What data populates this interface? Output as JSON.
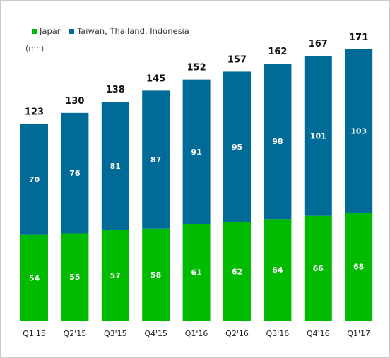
{
  "chart_data": {
    "type": "bar",
    "stacked": true,
    "categories": [
      "Q1'15",
      "Q2'15",
      "Q3'15",
      "Q4'15",
      "Q1'16",
      "Q2'16",
      "Q3'16",
      "Q4'16",
      "Q1'17"
    ],
    "series": [
      {
        "name": "Japan",
        "color": "#00bb00",
        "values": [
          54,
          55,
          57,
          58,
          61,
          62,
          64,
          66,
          68
        ]
      },
      {
        "name": "Taiwan, Thailand, Indonesia",
        "color": "#006b96",
        "values": [
          70,
          76,
          81,
          87,
          91,
          95,
          98,
          101,
          103
        ]
      }
    ],
    "totals": [
      123,
      130,
      138,
      145,
      152,
      157,
      162,
      167,
      171
    ],
    "unit_label": "(mn)",
    "title": "",
    "xlabel": "",
    "ylabel": "",
    "ylim": [
      0,
      171
    ],
    "grid": false,
    "legend_position": "top-left"
  }
}
